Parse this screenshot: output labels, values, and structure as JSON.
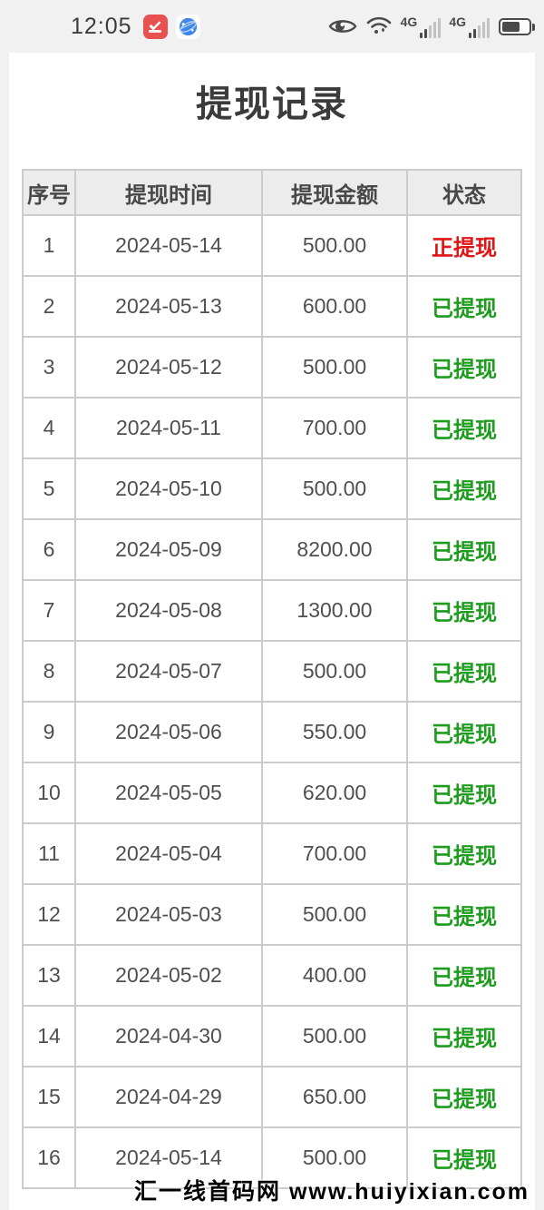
{
  "status_bar": {
    "time": "12:05",
    "network_labels": [
      "4G",
      "4G"
    ],
    "icons": [
      "huawei-app-icon",
      "browser-globe-icon",
      "eye-icon",
      "wifi-icon",
      "signal-bars",
      "signal-bars",
      "battery-icon"
    ]
  },
  "page": {
    "title": "提现记录"
  },
  "table": {
    "headers": [
      "序号",
      "提现时间",
      "提现金额",
      "状态"
    ],
    "rows": [
      {
        "no": "1",
        "date": "2024-05-14",
        "amount": "500.00",
        "status": "正提现",
        "status_type": "pending"
      },
      {
        "no": "2",
        "date": "2024-05-13",
        "amount": "600.00",
        "status": "已提现",
        "status_type": "done"
      },
      {
        "no": "3",
        "date": "2024-05-12",
        "amount": "500.00",
        "status": "已提现",
        "status_type": "done"
      },
      {
        "no": "4",
        "date": "2024-05-11",
        "amount": "700.00",
        "status": "已提现",
        "status_type": "done"
      },
      {
        "no": "5",
        "date": "2024-05-10",
        "amount": "500.00",
        "status": "已提现",
        "status_type": "done"
      },
      {
        "no": "6",
        "date": "2024-05-09",
        "amount": "8200.00",
        "status": "已提现",
        "status_type": "done"
      },
      {
        "no": "7",
        "date": "2024-05-08",
        "amount": "1300.00",
        "status": "已提现",
        "status_type": "done"
      },
      {
        "no": "8",
        "date": "2024-05-07",
        "amount": "500.00",
        "status": "已提现",
        "status_type": "done"
      },
      {
        "no": "9",
        "date": "2024-05-06",
        "amount": "550.00",
        "status": "已提现",
        "status_type": "done"
      },
      {
        "no": "10",
        "date": "2024-05-05",
        "amount": "620.00",
        "status": "已提现",
        "status_type": "done"
      },
      {
        "no": "11",
        "date": "2024-05-04",
        "amount": "700.00",
        "status": "已提现",
        "status_type": "done"
      },
      {
        "no": "12",
        "date": "2024-05-03",
        "amount": "500.00",
        "status": "已提现",
        "status_type": "done"
      },
      {
        "no": "13",
        "date": "2024-05-02",
        "amount": "400.00",
        "status": "已提现",
        "status_type": "done"
      },
      {
        "no": "14",
        "date": "2024-04-30",
        "amount": "500.00",
        "status": "已提现",
        "status_type": "done"
      },
      {
        "no": "15",
        "date": "2024-04-29",
        "amount": "650.00",
        "status": "已提现",
        "status_type": "done"
      },
      {
        "no": "16",
        "date": "2024-05-14",
        "amount": "500.00",
        "status": "已提现",
        "status_type": "done"
      }
    ]
  },
  "watermark": {
    "text": "汇一线首码网 www.huiyixian.com"
  },
  "colors": {
    "status_pending": "#e01515",
    "status_done": "#1e9c1e",
    "page_background": "#f1f1f2",
    "header_background": "#ececec",
    "border": "#cccccc"
  }
}
